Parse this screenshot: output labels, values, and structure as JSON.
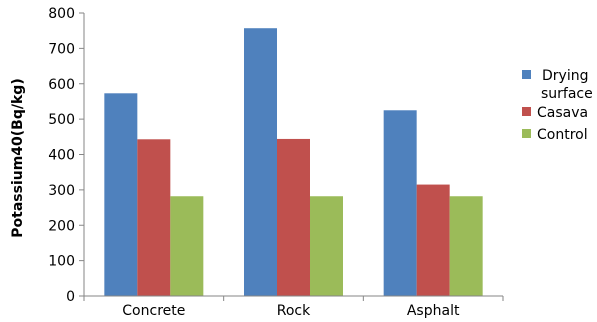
{
  "chart_data": {
    "type": "bar",
    "title": "",
    "xlabel": "",
    "ylabel": "Potassium40(Bq/kg)",
    "ylim": [
      0,
      800
    ],
    "yticks": [
      0,
      100,
      200,
      300,
      400,
      500,
      600,
      700,
      800
    ],
    "grid": false,
    "legend_position": "right",
    "categories": [
      "Concrete",
      "Rock",
      "Asphalt"
    ],
    "series": [
      {
        "name": "Drying surface",
        "legend_lines": [
          "Drying",
          "surface"
        ],
        "color": "#4F81BD",
        "values": [
          573,
          757,
          525
        ]
      },
      {
        "name": "Casava",
        "legend_lines": [
          "Casava"
        ],
        "color": "#C0504D",
        "values": [
          443,
          444,
          315
        ]
      },
      {
        "name": "Control",
        "legend_lines": [
          "Control"
        ],
        "color": "#9BBB59",
        "values": [
          282,
          282,
          282
        ]
      }
    ]
  }
}
